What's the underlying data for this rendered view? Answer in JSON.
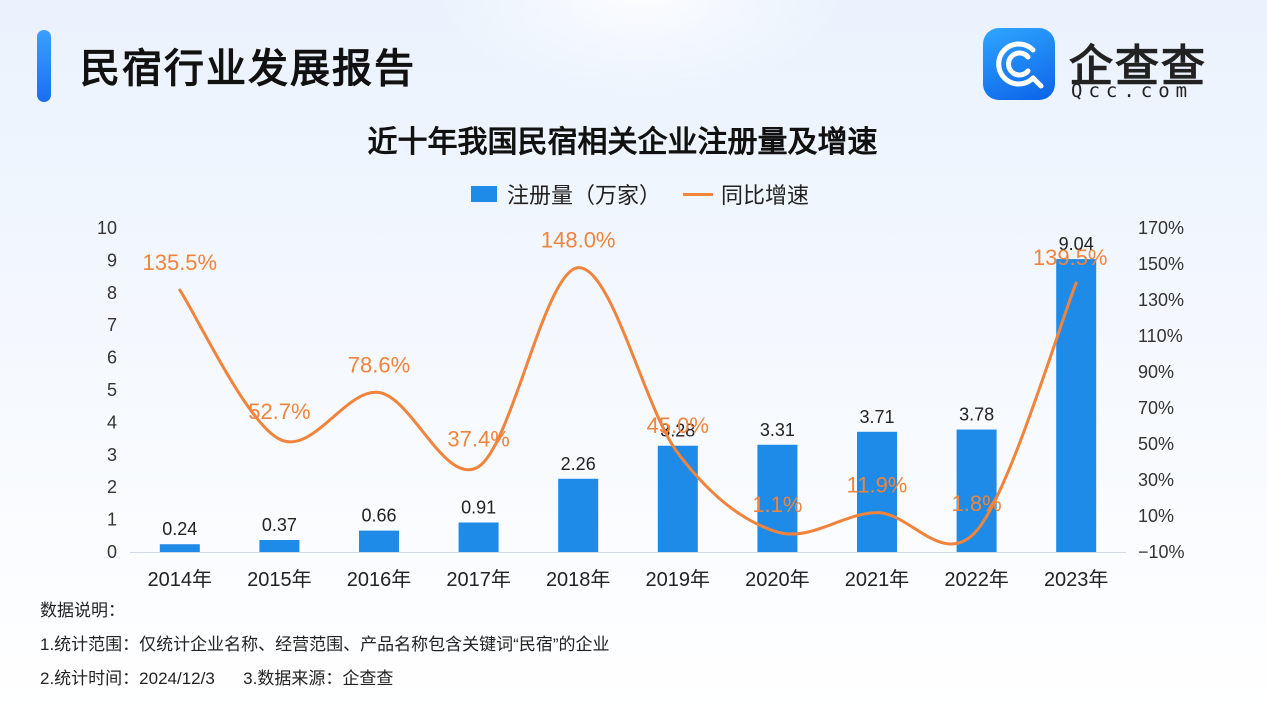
{
  "header": {
    "title": "民宿行业发展报告",
    "logo_name": "企查查",
    "logo_url": "Qcc.com"
  },
  "colors": {
    "bar": "#1e8be8",
    "line": "#f0843c",
    "accent": "#1a7cf5"
  },
  "legend": {
    "bar_label": "注册量（万家）",
    "line_label": "同比增速"
  },
  "chart_data": {
    "type": "bar",
    "title": "近十年我国民宿相关企业注册量及增速",
    "categories": [
      "2014年",
      "2015年",
      "2016年",
      "2017年",
      "2018年",
      "2019年",
      "2020年",
      "2021年",
      "2022年",
      "2023年"
    ],
    "series": [
      {
        "name": "注册量（万家）",
        "type": "bar",
        "axis": "left",
        "values": [
          0.24,
          0.37,
          0.66,
          0.91,
          2.26,
          3.28,
          3.31,
          3.71,
          3.78,
          9.04
        ],
        "labels": [
          "0.24",
          "0.37",
          "0.66",
          "0.91",
          "2.26",
          "3.28",
          "3.31",
          "3.71",
          "3.78",
          "9.04"
        ]
      },
      {
        "name": "同比增速",
        "type": "line",
        "axis": "right",
        "values": [
          135.5,
          52.7,
          78.6,
          37.4,
          148.0,
          45.0,
          1.1,
          11.9,
          1.8,
          139.5
        ],
        "labels": [
          "135.5%",
          "52.7%",
          "78.6%",
          "37.4%",
          "148.0%",
          "45.0%",
          "1.1%",
          "11.9%",
          "1.8%",
          "139.5%"
        ]
      }
    ],
    "y_left": {
      "range": [
        0,
        10
      ],
      "ticks": [
        "0",
        "1",
        "2",
        "3",
        "4",
        "5",
        "6",
        "7",
        "8",
        "9",
        "10"
      ]
    },
    "y_right": {
      "range": [
        -10,
        170
      ],
      "ticks": [
        "−10%",
        "10%",
        "30%",
        "50%",
        "70%",
        "90%",
        "110%",
        "130%",
        "150%",
        "170%"
      ]
    },
    "grid": false,
    "legend_position": "top-center"
  },
  "notes": {
    "heading": "数据说明：",
    "scope": "1.统计范围：仅统计企业名称、经营范围、产品名称包含关键词“民宿”的企业",
    "time": "2.统计时间：2024/12/3      3.数据来源：企查查"
  }
}
